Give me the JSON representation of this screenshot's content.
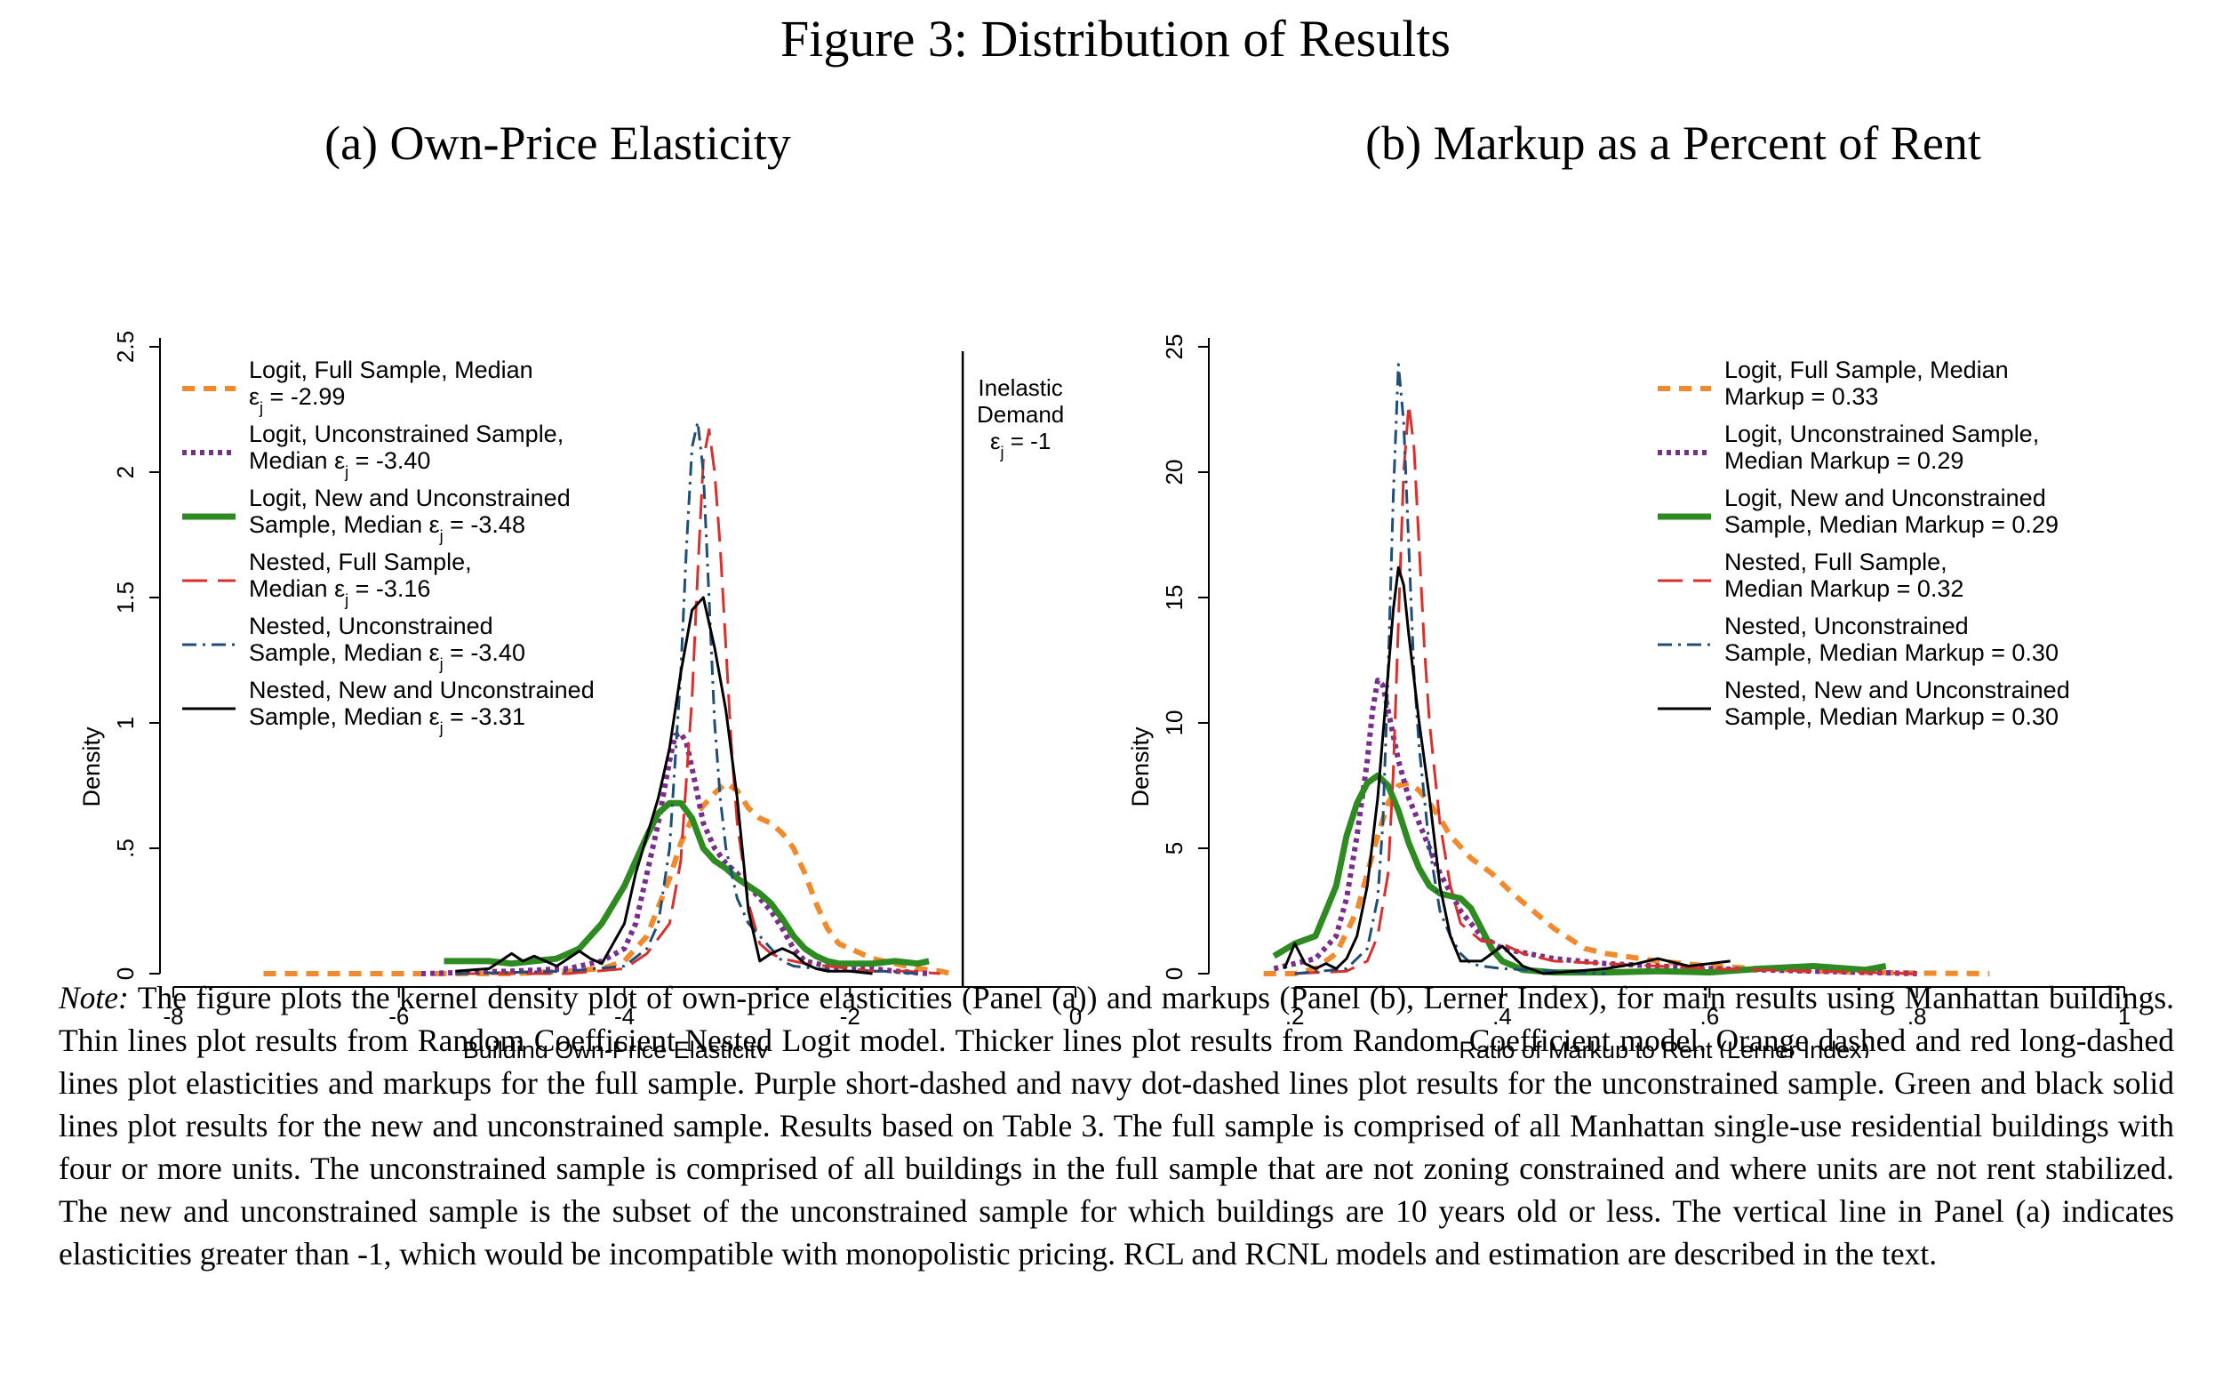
{
  "figure_title": "Figure 3: Distribution of Results",
  "note": {
    "label": "Note:",
    "text": "The figure plots the kernel density plot of own-price elasticities (Panel (a)) and markups (Panel (b), Lerner Index), for main results using Manhattan buildings. Thin lines plot results from Random Coefficient Nested Logit model. Thicker lines plot results from Random Coefficient model. Orange dashed and red long-dashed lines plot elasticities and markups for the full sample. Purple short-dashed and navy dot-dashed lines plot results for the unconstrained sample. Green and black solid lines plot results for the new and unconstrained sample. Results based on Table 3. The full sample is comprised of all Manhattan single-use residential buildings with four or more units. The unconstrained sample is comprised of all buildings in the full sample that are not zoning constrained and where units are not rent stabilized. The new and unconstrained sample is the subset of the unconstrained sample for which buildings are 10 years old or less. The vertical line in Panel (a) indicates elasticities greater than -1, which would be incompatible with monopolistic pricing. RCL and RCNL models and estimation are described in the text."
  },
  "chart_data": [
    {
      "type": "line",
      "title": "(a) Own-Price Elasticity",
      "xlabel": "Building Own-Price Elasticity",
      "ylabel": "Density",
      "xlim": [
        -8,
        0
      ],
      "ylim": [
        0,
        2.5
      ],
      "xticks": [
        -8,
        -6,
        -4,
        -2,
        0
      ],
      "xtick_labels": [
        "-8",
        "-6",
        "-4",
        "-2",
        "0"
      ],
      "yticks": [
        0,
        0.5,
        1,
        1.5,
        2,
        2.5
      ],
      "ytick_labels": [
        "0",
        ".5",
        "1",
        "1.5",
        "2",
        "2.5"
      ],
      "grid": false,
      "legend_position": "top-left",
      "vline": {
        "x": -1,
        "label": [
          "Inelastic",
          "Demand",
          "εj = -1"
        ]
      },
      "series": [
        {
          "name": "Logit, Full Sample, Median",
          "legend_lines": [
            "Logit, Full Sample, Median",
            "εj = -2.99"
          ],
          "color": "#F08A2C",
          "width": 6,
          "dash": "14,10",
          "x": [
            -7.2,
            -6,
            -5,
            -4.5,
            -4.2,
            -4,
            -3.8,
            -3.6,
            -3.5,
            -3.4,
            -3.3,
            -3.2,
            -3.1,
            -3.0,
            -2.9,
            -2.8,
            -2.7,
            -2.6,
            -2.5,
            -2.4,
            -2.3,
            -2.2,
            -2.1,
            -2.0,
            -1.9,
            -1.8,
            -1.7,
            -1.6,
            -1.4,
            -1.2,
            -1.1
          ],
          "y": [
            0,
            0,
            0,
            0.01,
            0.02,
            0.05,
            0.15,
            0.38,
            0.52,
            0.62,
            0.67,
            0.72,
            0.76,
            0.73,
            0.66,
            0.62,
            0.6,
            0.56,
            0.5,
            0.4,
            0.28,
            0.18,
            0.12,
            0.1,
            0.08,
            0.06,
            0.05,
            0.04,
            0.02,
            0.01,
            0
          ]
        },
        {
          "name": "Logit, Unconstrained Sample",
          "legend_lines": [
            "Logit, Unconstrained Sample,",
            "Median εj = -3.40"
          ],
          "color": "#7B2D8E",
          "width": 6,
          "dash": "5,5",
          "x": [
            -5.8,
            -5,
            -4.5,
            -4.2,
            -4.0,
            -3.9,
            -3.8,
            -3.7,
            -3.6,
            -3.55,
            -3.5,
            -3.45,
            -3.4,
            -3.3,
            -3.2,
            -3.1,
            -3.0,
            -2.9,
            -2.8,
            -2.7,
            -2.6,
            -2.5,
            -2.4,
            -2.2,
            -2.0,
            -1.8,
            -1.6,
            -1.3
          ],
          "y": [
            0,
            0.01,
            0.02,
            0.05,
            0.1,
            0.2,
            0.4,
            0.6,
            0.85,
            0.95,
            0.96,
            0.92,
            0.82,
            0.6,
            0.5,
            0.44,
            0.4,
            0.35,
            0.3,
            0.25,
            0.18,
            0.1,
            0.05,
            0.03,
            0.02,
            0.02,
            0.01,
            0
          ]
        },
        {
          "name": "Logit, New and Unconstrained Sample",
          "legend_lines": [
            "Logit, New and Unconstrained",
            "Sample, Median εj = -3.48"
          ],
          "color": "#2E8B22",
          "width": 7,
          "dash": "",
          "x": [
            -5.6,
            -5.2,
            -5,
            -4.8,
            -4.6,
            -4.4,
            -4.2,
            -4.0,
            -3.9,
            -3.8,
            -3.7,
            -3.6,
            -3.5,
            -3.4,
            -3.3,
            -3.2,
            -3.1,
            -3.0,
            -2.9,
            -2.8,
            -2.7,
            -2.6,
            -2.5,
            -2.4,
            -2.3,
            -2.2,
            -2.1,
            -2.0,
            -1.8,
            -1.6,
            -1.4,
            -1.3
          ],
          "y": [
            0.05,
            0.05,
            0.04,
            0.05,
            0.06,
            0.1,
            0.2,
            0.35,
            0.45,
            0.55,
            0.64,
            0.68,
            0.68,
            0.62,
            0.5,
            0.45,
            0.42,
            0.38,
            0.35,
            0.32,
            0.28,
            0.22,
            0.15,
            0.1,
            0.07,
            0.05,
            0.04,
            0.04,
            0.04,
            0.05,
            0.04,
            0.05
          ]
        },
        {
          "name": "Nested, Full Sample",
          "legend_lines": [
            "Nested, Full Sample,",
            "Median εj = -3.16"
          ],
          "color": "#D9302C",
          "width": 3,
          "dash": "28,12",
          "x": [
            -5.5,
            -4.5,
            -4,
            -3.8,
            -3.6,
            -3.5,
            -3.4,
            -3.35,
            -3.3,
            -3.25,
            -3.2,
            -3.15,
            -3.1,
            -3.05,
            -3.0,
            -2.9,
            -2.8,
            -2.7,
            -2.6,
            -2.5,
            -2.4,
            -2.2,
            -2.0,
            -1.8,
            -1.5,
            -1.2
          ],
          "y": [
            0,
            0,
            0.02,
            0.08,
            0.2,
            0.45,
            1.1,
            1.6,
            2.05,
            2.17,
            2.0,
            1.7,
            1.3,
            0.9,
            0.6,
            0.28,
            0.12,
            0.08,
            0.06,
            0.05,
            0.04,
            0.03,
            0.02,
            0.01,
            0.01,
            0
          ]
        },
        {
          "name": "Nested, Unconstrained Sample",
          "legend_lines": [
            "Nested, Unconstrained",
            "Sample, Median εj = -3.40"
          ],
          "color": "#1F4E79",
          "width": 3,
          "dash": "16,7,3,7",
          "x": [
            -5.5,
            -4.5,
            -4,
            -3.8,
            -3.7,
            -3.6,
            -3.5,
            -3.45,
            -3.4,
            -3.35,
            -3.3,
            -3.25,
            -3.2,
            -3.15,
            -3.1,
            -3.0,
            -2.9,
            -2.8,
            -2.7,
            -2.6,
            -2.5,
            -2.3,
            -2.0,
            -1.7,
            -1.4
          ],
          "y": [
            0,
            0.01,
            0.03,
            0.1,
            0.2,
            0.5,
            1.2,
            1.7,
            2.1,
            2.2,
            2.0,
            1.5,
            1.0,
            0.7,
            0.5,
            0.3,
            0.2,
            0.15,
            0.1,
            0.05,
            0.03,
            0.02,
            0.01,
            0.01,
            0
          ]
        },
        {
          "name": "Nested, New and Unconstrained Sample",
          "legend_lines": [
            "Nested, New and Unconstrained",
            "Sample, Median εj = -3.31"
          ],
          "color": "#000000",
          "width": 3,
          "dash": "",
          "x": [
            -5.5,
            -5.2,
            -5.0,
            -4.9,
            -4.8,
            -4.6,
            -4.5,
            -4.4,
            -4.3,
            -4.2,
            -4.0,
            -3.9,
            -3.8,
            -3.7,
            -3.6,
            -3.5,
            -3.4,
            -3.3,
            -3.2,
            -3.1,
            -3.0,
            -2.9,
            -2.8,
            -2.7,
            -2.6,
            -2.5,
            -2.4,
            -2.3,
            -2.2,
            -2.0,
            -1.8
          ],
          "y": [
            0.01,
            0.02,
            0.08,
            0.05,
            0.07,
            0.03,
            0.06,
            0.09,
            0.06,
            0.04,
            0.2,
            0.4,
            0.55,
            0.7,
            0.9,
            1.2,
            1.45,
            1.5,
            1.3,
            1.05,
            0.7,
            0.25,
            0.05,
            0.08,
            0.1,
            0.08,
            0.04,
            0.02,
            0.01,
            0.01,
            0
          ]
        }
      ]
    },
    {
      "type": "line",
      "title": "(b) Markup as a Percent of Rent",
      "xlabel": "Ratio of Markup to Rent (Lerner Index)",
      "ylabel": "Density",
      "xlim": [
        0.13,
        1.0
      ],
      "ylim": [
        0,
        25
      ],
      "xticks": [
        0.2,
        0.4,
        0.6,
        0.8,
        1
      ],
      "xtick_labels": [
        ".2",
        ".4",
        ".6",
        ".8",
        "1"
      ],
      "yticks": [
        0,
        5,
        10,
        15,
        20,
        25
      ],
      "ytick_labels": [
        "0",
        "5",
        "10",
        "15",
        "20",
        "25"
      ],
      "grid": false,
      "legend_position": "top-right",
      "series": [
        {
          "name": "Logit, Full Sample, Median Markup = 0.33",
          "legend_lines": [
            "Logit, Full Sample, Median",
            "Markup = 0.33"
          ],
          "color": "#F08A2C",
          "width": 6,
          "dash": "14,10",
          "x": [
            0.17,
            0.2,
            0.22,
            0.24,
            0.26,
            0.27,
            0.28,
            0.29,
            0.3,
            0.31,
            0.32,
            0.33,
            0.34,
            0.35,
            0.37,
            0.39,
            0.41,
            0.43,
            0.45,
            0.48,
            0.5,
            0.55,
            0.6,
            0.65,
            0.7,
            0.75,
            0.8,
            0.87
          ],
          "y": [
            0,
            0,
            0.2,
            0.8,
            2.5,
            4,
            5.5,
            6.8,
            7.5,
            7.6,
            7.3,
            6.8,
            6.2,
            5.5,
            4.6,
            4.0,
            3.2,
            2.5,
            1.8,
            1.0,
            0.8,
            0.5,
            0.3,
            0.2,
            0.1,
            0.05,
            0.02,
            0
          ]
        },
        {
          "name": "Logit, Unconstrained Sample, Median Markup = 0.29",
          "legend_lines": [
            "Logit, Unconstrained Sample,",
            "Median Markup = 0.29"
          ],
          "color": "#7B2D8E",
          "width": 6,
          "dash": "5,5",
          "x": [
            0.18,
            0.2,
            0.22,
            0.24,
            0.25,
            0.26,
            0.27,
            0.275,
            0.28,
            0.285,
            0.29,
            0.3,
            0.31,
            0.32,
            0.33,
            0.34,
            0.36,
            0.38,
            0.4,
            0.45,
            0.5,
            0.55,
            0.6,
            0.7,
            0.8
          ],
          "y": [
            0.2,
            0.4,
            0.6,
            1.5,
            3,
            5.5,
            8.5,
            10.5,
            11.7,
            11.5,
            10.5,
            8.5,
            7.0,
            6.0,
            5.0,
            4.0,
            2.5,
            1.5,
            1.0,
            0.6,
            0.4,
            0.3,
            0.2,
            0.1,
            0
          ]
        },
        {
          "name": "Logit, New and Unconstrained Sample, Median Markup = 0.29",
          "legend_lines": [
            "Logit, New and Unconstrained",
            "Sample, Median Markup = 0.29"
          ],
          "color": "#2E8B22",
          "width": 7,
          "dash": "",
          "x": [
            0.18,
            0.2,
            0.22,
            0.23,
            0.24,
            0.25,
            0.26,
            0.27,
            0.28,
            0.29,
            0.3,
            0.31,
            0.32,
            0.33,
            0.34,
            0.35,
            0.36,
            0.37,
            0.38,
            0.39,
            0.4,
            0.42,
            0.45,
            0.5,
            0.55,
            0.6,
            0.65,
            0.7,
            0.75,
            0.77
          ],
          "y": [
            0.7,
            1.2,
            1.5,
            2.5,
            3.5,
            5.5,
            6.8,
            7.6,
            7.9,
            7.5,
            6.5,
            5.2,
            4.2,
            3.5,
            3.2,
            3.1,
            3.0,
            2.6,
            1.8,
            1.0,
            0.5,
            0.15,
            0.05,
            0.05,
            0.1,
            0.05,
            0.2,
            0.3,
            0.15,
            0.3
          ]
        },
        {
          "name": "Nested, Full Sample, Median Markup = 0.32",
          "legend_lines": [
            "Nested, Full Sample,",
            "Median Markup = 0.32"
          ],
          "color": "#D9302C",
          "width": 3,
          "dash": "28,12",
          "x": [
            0.2,
            0.25,
            0.27,
            0.28,
            0.29,
            0.295,
            0.3,
            0.305,
            0.31,
            0.315,
            0.32,
            0.325,
            0.33,
            0.34,
            0.35,
            0.36,
            0.38,
            0.4,
            0.42,
            0.45,
            0.5,
            0.55,
            0.6,
            0.7,
            0.8
          ],
          "y": [
            0,
            0.1,
            0.5,
            1.5,
            4,
            8,
            14,
            20,
            22.7,
            21,
            17,
            13,
            10,
            6,
            3.5,
            2,
            1.3,
            1.2,
            0.8,
            0.5,
            0.4,
            0.3,
            0.2,
            0.1,
            0
          ]
        },
        {
          "name": "Nested, Unconstrained Sample, Median Markup = 0.30",
          "legend_lines": [
            "Nested, Unconstrained",
            "Sample, Median Markup = 0.30"
          ],
          "color": "#1F4E79",
          "width": 3,
          "dash": "16,7,3,7",
          "x": [
            0.2,
            0.25,
            0.27,
            0.28,
            0.285,
            0.29,
            0.295,
            0.3,
            0.305,
            0.31,
            0.315,
            0.32,
            0.33,
            0.34,
            0.35,
            0.36,
            0.37,
            0.38,
            0.4,
            0.45,
            0.5
          ],
          "y": [
            0,
            0.2,
            1,
            3,
            6,
            12,
            19,
            24.3,
            22,
            17,
            12,
            9,
            5,
            2.5,
            1.5,
            0.8,
            0.4,
            0.3,
            0.2,
            0.1,
            0
          ]
        },
        {
          "name": "Nested, New and Unconstrained Sample, Median Markup = 0.30",
          "legend_lines": [
            "Nested, New and Unconstrained",
            "Sample, Median Markup = 0.30"
          ],
          "color": "#000000",
          "width": 3,
          "dash": "",
          "x": [
            0.19,
            0.2,
            0.21,
            0.22,
            0.23,
            0.24,
            0.25,
            0.26,
            0.27,
            0.28,
            0.29,
            0.295,
            0.3,
            0.305,
            0.31,
            0.32,
            0.33,
            0.34,
            0.35,
            0.36,
            0.38,
            0.4,
            0.42,
            0.44,
            0.47,
            0.5,
            0.53,
            0.55,
            0.58,
            0.6,
            0.62
          ],
          "y": [
            0.2,
            1.2,
            0.4,
            0.2,
            0.4,
            0.2,
            0.6,
            1.5,
            3.5,
            7,
            12,
            14.5,
            16.2,
            15.5,
            13.5,
            10,
            7,
            3.5,
            1.5,
            0.5,
            0.5,
            1.1,
            0.3,
            0,
            0.1,
            0.2,
            0.4,
            0.6,
            0.3,
            0.4,
            0.5
          ]
        }
      ]
    }
  ]
}
